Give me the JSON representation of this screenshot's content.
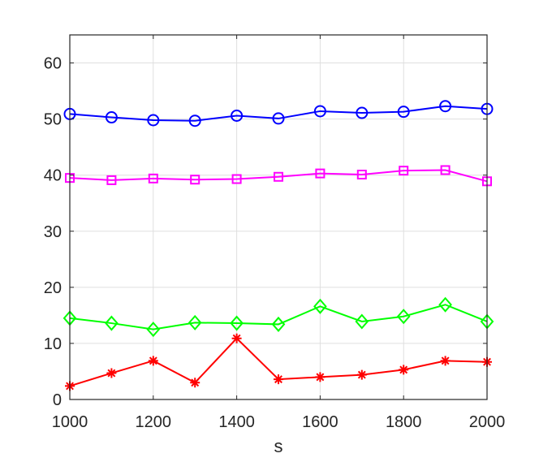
{
  "chart_data": {
    "type": "line",
    "title": "",
    "xlabel": "s",
    "ylabel": "",
    "xlim": [
      1000,
      2000
    ],
    "ylim": [
      0,
      65
    ],
    "xticks": [
      "1000",
      "1200",
      "1400",
      "1600",
      "1800",
      "2000"
    ],
    "yticks": [
      "0",
      "10",
      "20",
      "30",
      "40",
      "50",
      "60"
    ],
    "grid": true,
    "legend": "none",
    "x": [
      1000,
      1100,
      1200,
      1300,
      1400,
      1500,
      1600,
      1700,
      1800,
      1900,
      2000
    ],
    "series": [
      {
        "marker": "circle-icon",
        "color": "#0000ff",
        "values": [
          50.9,
          50.3,
          49.8,
          49.7,
          50.6,
          50.1,
          51.4,
          51.1,
          51.3,
          52.3,
          51.8
        ]
      },
      {
        "marker": "square-icon",
        "color": "#ff00ff",
        "values": [
          39.5,
          39.1,
          39.4,
          39.2,
          39.3,
          39.7,
          40.3,
          40.1,
          40.8,
          40.9,
          38.9
        ]
      },
      {
        "marker": "diamond-icon",
        "color": "#00ff00",
        "values": [
          14.5,
          13.6,
          12.5,
          13.7,
          13.6,
          13.4,
          16.6,
          13.9,
          14.8,
          16.9,
          13.9
        ]
      },
      {
        "marker": "asterisk-icon",
        "color": "#ff0000",
        "values": [
          2.4,
          4.7,
          6.9,
          3.0,
          10.9,
          3.6,
          4.0,
          4.4,
          5.3,
          6.9,
          6.7
        ]
      }
    ]
  }
}
